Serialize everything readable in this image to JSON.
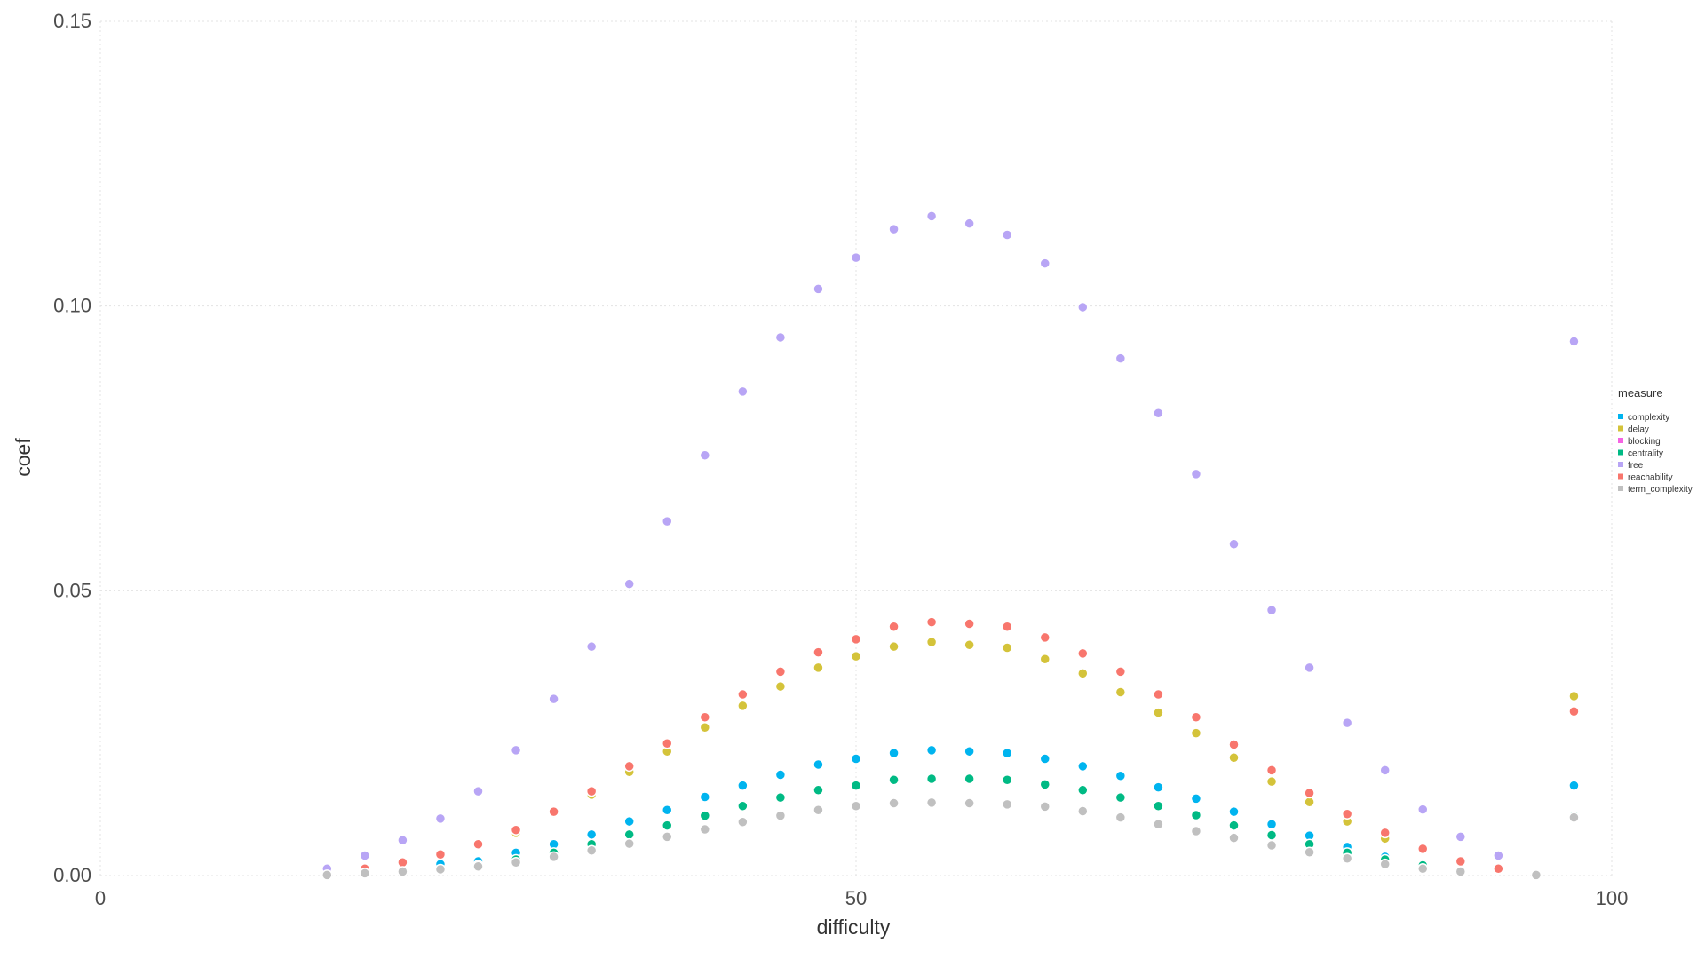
{
  "chart_data": {
    "type": "scatter",
    "title": "",
    "xlabel": "difficulty",
    "ylabel": "coef",
    "xlim": [
      0,
      100
    ],
    "ylim": [
      0,
      0.15
    ],
    "x_ticks": [
      0,
      50,
      100
    ],
    "x_tick_labels": [
      "0",
      "50",
      "100"
    ],
    "y_ticks": [
      0,
      0.05,
      0.1,
      0.15
    ],
    "y_tick_labels": [
      "0.00",
      "0.05",
      "0.10",
      "0.15"
    ],
    "grid": true,
    "legend": {
      "title": "measure",
      "position": "right"
    },
    "x": [
      15,
      17.5,
      20,
      22.5,
      25,
      27.5,
      30,
      32.5,
      35,
      37.5,
      40,
      42.5,
      45,
      47.5,
      50,
      52.5,
      55,
      57.5,
      60,
      62.5,
      65,
      67.5,
      70,
      72.5,
      75,
      77.5,
      80,
      82.5,
      85,
      87.5,
      90,
      92.5,
      95,
      97.5
    ],
    "series": [
      {
        "name": "complexity",
        "color": "#00b4ef",
        "values": [
          null,
          null,
          null,
          0.002,
          0.0025,
          0.004,
          0.0055,
          0.0072,
          0.0095,
          0.0115,
          0.0138,
          0.0158,
          0.0177,
          0.0195,
          0.0205,
          0.0215,
          0.022,
          0.0218,
          0.0215,
          0.0205,
          0.0192,
          0.0175,
          0.0155,
          0.0135,
          0.0112,
          0.009,
          0.007,
          0.005,
          0.0033,
          0.002,
          null,
          null,
          null,
          0.0158
        ]
      },
      {
        "name": "delay",
        "color": "#d4c33a",
        "values": [
          null,
          null,
          null,
          null,
          null,
          0.0075,
          0.011,
          0.0142,
          0.0182,
          0.0218,
          0.026,
          0.0298,
          0.0332,
          0.0365,
          0.0385,
          0.0402,
          0.041,
          0.0405,
          0.04,
          0.038,
          0.0355,
          0.0322,
          0.0286,
          0.025,
          0.0207,
          0.0165,
          0.0129,
          0.0095,
          0.0065,
          null,
          null,
          null,
          null,
          0.0315
        ]
      },
      {
        "name": "blocking",
        "color": "#f564e3",
        "values": [
          null,
          null,
          null,
          null,
          null,
          null,
          null,
          null,
          null,
          null,
          null,
          null,
          null,
          null,
          null,
          null,
          null,
          null,
          null,
          null,
          null,
          null,
          null,
          null,
          null,
          null,
          null,
          null,
          null,
          null,
          null,
          null,
          null,
          null
        ]
      },
      {
        "name": "centrality",
        "color": "#00ba84",
        "values": [
          null,
          null,
          null,
          null,
          0.0018,
          0.0028,
          0.004,
          0.0055,
          0.0072,
          0.0088,
          0.0105,
          0.0122,
          0.0137,
          0.015,
          0.0158,
          0.0168,
          0.017,
          0.017,
          0.0168,
          0.016,
          0.015,
          0.0137,
          0.0122,
          0.0106,
          0.0088,
          0.0071,
          0.0055,
          0.004,
          0.0028,
          0.0018,
          0.0005,
          null,
          null,
          0.0105
        ]
      },
      {
        "name": "free",
        "color": "#b8a5f5",
        "values": [
          0.0012,
          0.0035,
          0.0062,
          0.01,
          0.0148,
          0.022,
          0.031,
          0.0402,
          0.0512,
          0.0622,
          0.0738,
          0.085,
          0.0945,
          0.103,
          0.1085,
          0.1135,
          0.1158,
          0.1145,
          0.1125,
          0.1075,
          0.0998,
          0.0908,
          0.0812,
          0.0705,
          0.0582,
          0.0466,
          0.0365,
          0.0268,
          0.0185,
          0.0116,
          0.0068,
          0.0035,
          0.0001,
          0.0938
        ]
      },
      {
        "name": "reachability",
        "color": "#f8766d",
        "values": [
          null,
          0.0012,
          0.0023,
          0.0037,
          0.0055,
          0.008,
          0.0112,
          0.0148,
          0.0192,
          0.0232,
          0.0278,
          0.0318,
          0.0358,
          0.0392,
          0.0415,
          0.0437,
          0.0445,
          0.0442,
          0.0437,
          0.0418,
          0.039,
          0.0358,
          0.0318,
          0.0278,
          0.023,
          0.0185,
          0.0145,
          0.0108,
          0.0075,
          0.0047,
          0.0025,
          0.0012,
          null,
          0.0288
        ]
      },
      {
        "name": "term_complexity",
        "color": "#c0c0c0",
        "values": [
          0.0001,
          0.0004,
          0.0007,
          0.0011,
          0.0016,
          0.0023,
          0.0033,
          0.0044,
          0.0056,
          0.0068,
          0.0081,
          0.0094,
          0.0105,
          0.0115,
          0.0122,
          0.0127,
          0.0128,
          0.0127,
          0.0125,
          0.0121,
          0.0113,
          0.0102,
          0.009,
          0.0078,
          0.0066,
          0.0053,
          0.0041,
          0.003,
          0.002,
          0.0012,
          0.0007,
          null,
          0.0001,
          0.0102
        ]
      }
    ]
  }
}
